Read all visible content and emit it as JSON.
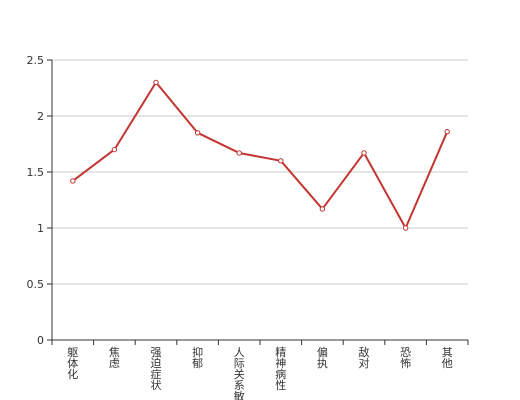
{
  "chart_data": {
    "type": "line",
    "categories": [
      "躯体化",
      "焦虑",
      "强迫症状",
      "抑郁",
      "人际关系敏感",
      "精神病性",
      "偏执",
      "敌对",
      "恐怖",
      "其他"
    ],
    "series": [
      {
        "values": [
          1.42,
          1.7,
          2.3,
          1.85,
          1.67,
          1.6,
          1.17,
          1.67,
          1.0,
          1.86
        ]
      }
    ],
    "ylim": [
      0,
      2.5
    ],
    "yticks": [
      "0",
      "0.5",
      "1",
      "1.5",
      "2",
      "2.5"
    ],
    "grid": true,
    "line_color": "#c23531",
    "grid_color": "#cccccc",
    "axis_color": "#333333"
  }
}
